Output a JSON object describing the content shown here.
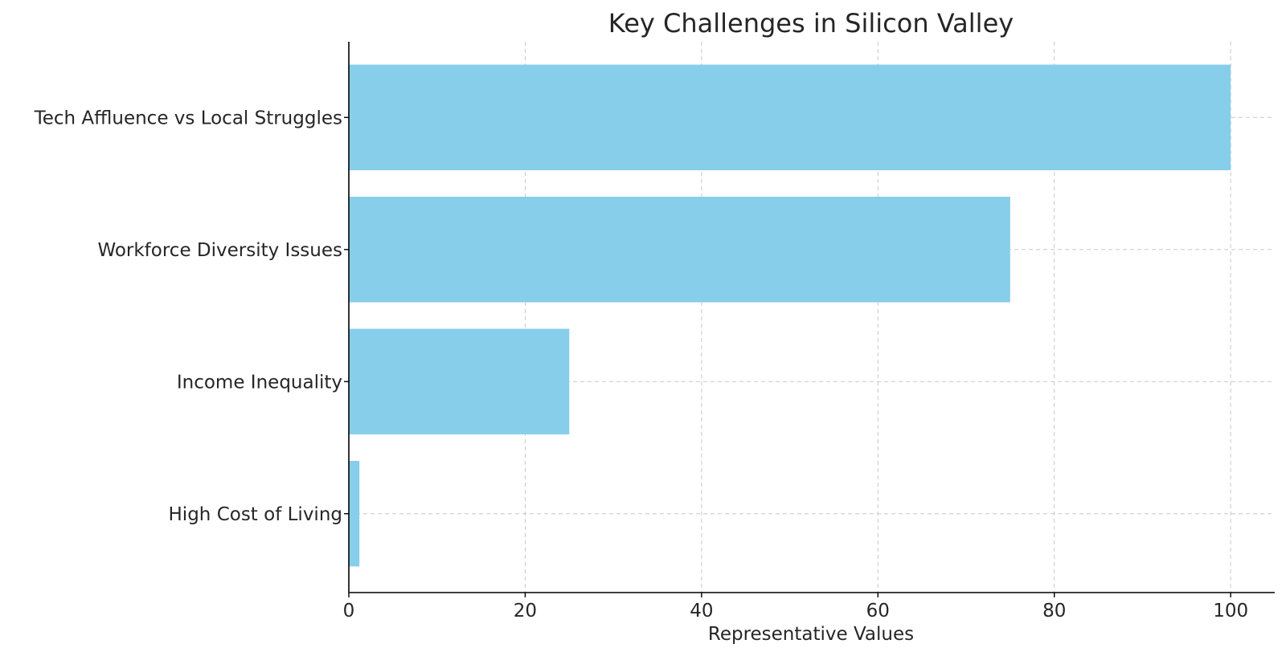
{
  "chart_data": {
    "type": "bar",
    "orientation": "horizontal",
    "title": "Key Challenges in Silicon Valley",
    "xlabel": "Representative Values",
    "ylabel": "",
    "categories": [
      "High Cost of Living",
      "Income Inequality",
      "Workforce Diversity Issues",
      "Tech Affluence vs Local Struggles"
    ],
    "values": [
      1.2,
      25,
      75,
      100
    ],
    "xlim": [
      0,
      105
    ],
    "xticks": [
      0,
      20,
      40,
      60,
      80,
      100
    ],
    "xtick_labels": [
      "0",
      "20",
      "40",
      "60",
      "80",
      "100"
    ],
    "grid": true,
    "grid_style": "dashed",
    "bar_color": "#87CEEB"
  }
}
